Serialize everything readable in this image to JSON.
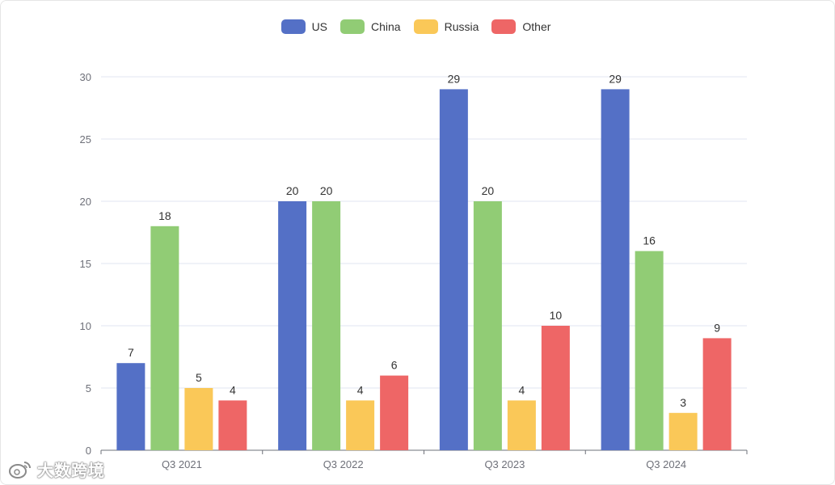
{
  "chart_data": {
    "type": "bar",
    "title": "",
    "xlabel": "",
    "ylabel": "",
    "categories": [
      "Q3 2021",
      "Q3 2022",
      "Q3 2023",
      "Q3 2024"
    ],
    "series": [
      {
        "name": "US",
        "color": "#5470c6",
        "values": [
          7,
          20,
          29,
          29
        ]
      },
      {
        "name": "China",
        "color": "#91cc75",
        "values": [
          18,
          20,
          20,
          16
        ]
      },
      {
        "name": "Russia",
        "color": "#fac858",
        "values": [
          5,
          4,
          4,
          3
        ]
      },
      {
        "name": "Other",
        "color": "#ee6666",
        "values": [
          4,
          6,
          10,
          9
        ]
      }
    ],
    "ylim": [
      0,
      30
    ],
    "yticks": [
      0,
      5,
      10,
      15,
      20,
      25,
      30
    ],
    "grid": true,
    "legend_position": "top-center"
  },
  "watermark": {
    "text": "大数跨境",
    "icon": "weibo-logo-icon"
  }
}
